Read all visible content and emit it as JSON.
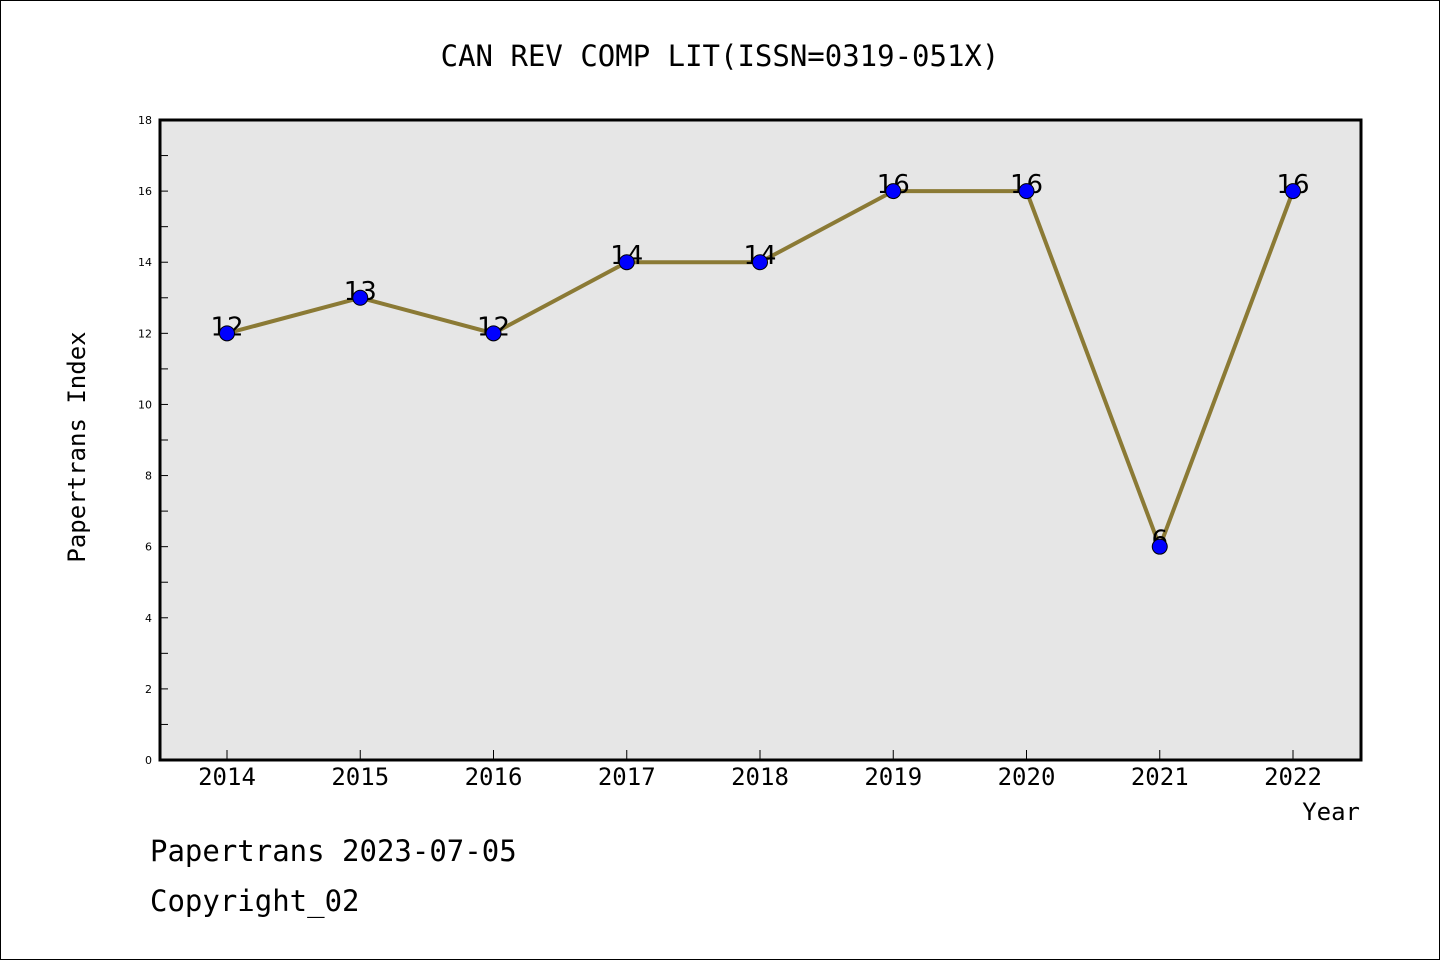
{
  "chart_data": {
    "type": "line",
    "title": "CAN REV COMP LIT(ISSN=0319-051X)",
    "xlabel": "Year",
    "ylabel": "Papertrans Index",
    "categories": [
      "2014",
      "2015",
      "2016",
      "2017",
      "2018",
      "2019",
      "2020",
      "2021",
      "2022"
    ],
    "series": [
      {
        "values": [
          12,
          13,
          12,
          14,
          14,
          16,
          16,
          6,
          16
        ],
        "data_labels": [
          "12",
          "13",
          "12",
          "14",
          "14",
          "16",
          "16",
          "6",
          "16"
        ]
      }
    ],
    "ylim": [
      0,
      18
    ],
    "yticks": [
      "0",
      "2",
      "4",
      "6",
      "8",
      "10",
      "12",
      "14",
      "16",
      "18"
    ],
    "grid": false,
    "legend": "none",
    "colors": {
      "line": "#8B7A35",
      "marker": "#0000FF",
      "plot_background": "#E6E6E6"
    }
  },
  "footer": {
    "date_line": "Papertrans 2023-07-05",
    "copyright_line": "Copyright_02"
  }
}
